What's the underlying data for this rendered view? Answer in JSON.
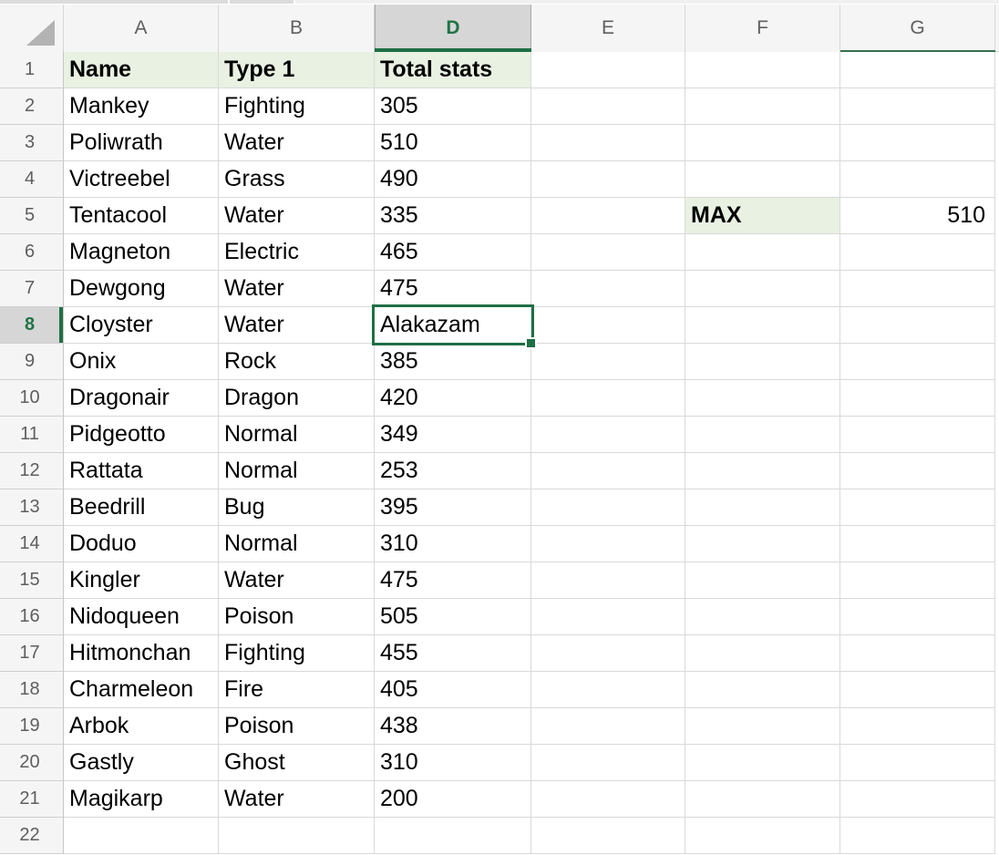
{
  "sheet": {
    "column_headers": [
      "A",
      "B",
      "D",
      "E",
      "F",
      "G"
    ],
    "row_numbers": [
      "1",
      "2",
      "3",
      "4",
      "5",
      "6",
      "7",
      "8",
      "9",
      "10",
      "11",
      "12",
      "13",
      "14",
      "15",
      "16",
      "17",
      "18",
      "19",
      "20",
      "21",
      "22"
    ],
    "selected_column": "D",
    "selected_row": "8",
    "active_cell": {
      "column": "D",
      "row": "8",
      "value": "Alakazam"
    },
    "header_row": {
      "name": "Name",
      "type": "Type 1",
      "total": "Total stats"
    },
    "rows": [
      {
        "name": "Mankey",
        "type": "Fighting",
        "total": "305"
      },
      {
        "name": "Poliwrath",
        "type": "Water",
        "total": "510"
      },
      {
        "name": "Victreebel",
        "type": "Grass",
        "total": "490"
      },
      {
        "name": "Tentacool",
        "type": "Water",
        "total": "335"
      },
      {
        "name": "Magneton",
        "type": "Electric",
        "total": "465"
      },
      {
        "name": "Dewgong",
        "type": "Water",
        "total": "475"
      },
      {
        "name": "Cloyster",
        "type": "Water",
        "total": "Alakazam"
      },
      {
        "name": "Onix",
        "type": "Rock",
        "total": "385"
      },
      {
        "name": "Dragonair",
        "type": "Dragon",
        "total": "420"
      },
      {
        "name": "Pidgeotto",
        "type": "Normal",
        "total": "349"
      },
      {
        "name": "Rattata",
        "type": "Normal",
        "total": "253"
      },
      {
        "name": "Beedrill",
        "type": "Bug",
        "total": "395"
      },
      {
        "name": "Doduo",
        "type": "Normal",
        "total": "310"
      },
      {
        "name": "Kingler",
        "type": "Water",
        "total": "475"
      },
      {
        "name": "Nidoqueen",
        "type": "Poison",
        "total": "505"
      },
      {
        "name": "Hitmonchan",
        "type": "Fighting",
        "total": "455"
      },
      {
        "name": "Charmeleon",
        "type": "Fire",
        "total": "405"
      },
      {
        "name": "Arbok",
        "type": "Poison",
        "total": "438"
      },
      {
        "name": "Gastly",
        "type": "Ghost",
        "total": "310"
      },
      {
        "name": "Magikarp",
        "type": "Water",
        "total": "200"
      }
    ],
    "max_label": "MAX",
    "max_value": "510",
    "icons": {
      "select_all": "corner-triangle"
    },
    "colors": {
      "accent_green": "#1f6f45",
      "green_text": "#217346",
      "light_green_fill": "#e8f1e2",
      "selected_header_bg": "#d6d6d6",
      "header_bg": "#f5f5f5",
      "gridline": "#d9d9d9"
    }
  }
}
